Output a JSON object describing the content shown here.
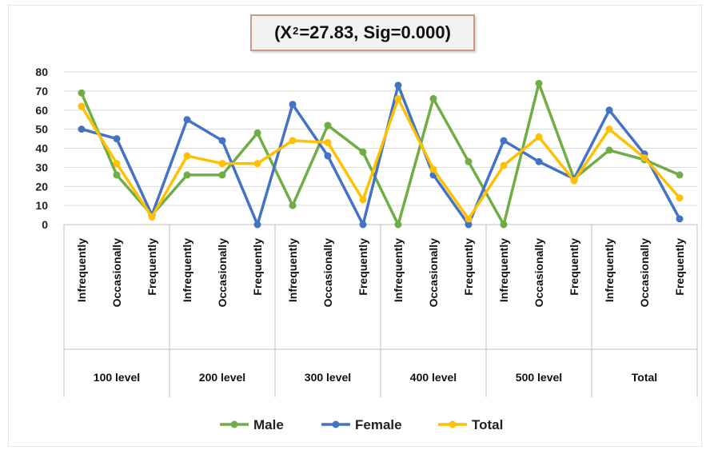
{
  "title": {
    "prefix": "(X",
    "superscript": "2",
    "suffix": "=27.83, Sig=0.000)"
  },
  "chart_data": {
    "type": "line",
    "ylim": [
      0,
      80
    ],
    "yticks": [
      0,
      10,
      20,
      30,
      40,
      50,
      60,
      70,
      80
    ],
    "grid": true,
    "legend_position": "bottom",
    "groups": [
      "100 level",
      "200 level",
      "300 level",
      "400 level",
      "500 level",
      "Total"
    ],
    "subcategories": [
      "Infrequently",
      "Occasionally",
      "Frequently"
    ],
    "series": [
      {
        "name": "Male",
        "color": "#70ad47",
        "values": [
          69,
          26,
          5,
          26,
          26,
          48,
          10,
          52,
          38,
          0,
          66,
          33,
          0,
          74,
          24,
          39,
          34,
          26
        ]
      },
      {
        "name": "Female",
        "color": "#4472c4",
        "values": [
          50,
          45,
          5,
          55,
          44,
          0,
          63,
          36,
          0,
          73,
          26,
          0,
          44,
          33,
          24,
          60,
          37,
          3
        ]
      },
      {
        "name": "Total",
        "color": "#ffc000",
        "values": [
          62,
          32,
          4,
          36,
          32,
          32,
          44,
          43,
          13,
          66,
          29,
          3,
          31,
          46,
          23,
          50,
          35,
          14
        ]
      }
    ]
  }
}
